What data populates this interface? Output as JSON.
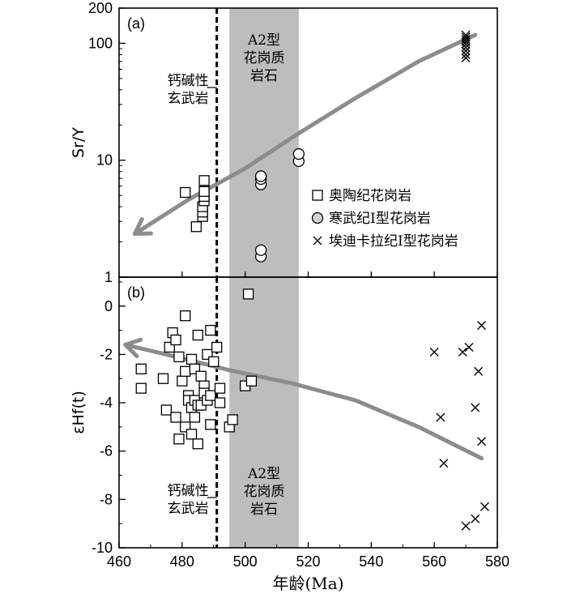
{
  "colors": {
    "shade": "#bdbdbd",
    "trend": "#8c8c8c",
    "cambrian_fill": "#d4d4d4",
    "axis": "#000000"
  },
  "chart_data": [
    {
      "type": "scatter",
      "panel_label": "(a)",
      "ylabel": "Sr/Y",
      "yscale": "log",
      "xlim": [
        460,
        580
      ],
      "ylim": [
        1,
        200
      ],
      "yticks": [
        1,
        10,
        100,
        200
      ],
      "ytick_labels": [
        "1",
        "10",
        "100",
        "200"
      ],
      "shaded_band": {
        "x0": 495,
        "x1": 517,
        "label_lines": [
          "A2型",
          "花岗质",
          "岩石"
        ]
      },
      "dashed_line": {
        "x": 491,
        "label_lines": [
          "钙碱性",
          "玄武岩"
        ]
      },
      "trend_arrow": {
        "points": [
          [
            573,
            118
          ],
          [
            555,
            70
          ],
          [
            535,
            34
          ],
          [
            517,
            17
          ],
          [
            500,
            8.5
          ],
          [
            482,
            4.6
          ],
          [
            465,
            2.35
          ]
        ],
        "direction": "toward-lower-left"
      },
      "legend": {
        "position": "right",
        "entries": [
          {
            "marker": "square",
            "label": "奥陶纪花岗岩"
          },
          {
            "marker": "circle",
            "label": "寒武纪I型花岗岩"
          },
          {
            "marker": "x",
            "label": "埃迪卡拉纪I型花岗岩"
          }
        ]
      },
      "series": [
        {
          "marker": "square",
          "points": [
            [
              481,
              5.3
            ],
            [
              484.5,
              2.7
            ],
            [
              486.5,
              3.3
            ],
            [
              486.5,
              3.6
            ],
            [
              486.5,
              4.0
            ],
            [
              487,
              4.5
            ],
            [
              487,
              4.9
            ],
            [
              487,
              5.4
            ],
            [
              487,
              6.7
            ]
          ]
        },
        {
          "marker": "circle",
          "points": [
            [
              505,
              1.5
            ],
            [
              505,
              1.7
            ],
            [
              505,
              6.2
            ],
            [
              505,
              6.9
            ],
            [
              505,
              7.3
            ],
            [
              517,
              9.8
            ],
            [
              517,
              11.3
            ]
          ]
        },
        {
          "marker": "x",
          "points": [
            [
              570,
              75
            ],
            [
              570,
              80
            ],
            [
              570,
              86
            ],
            [
              570,
              92
            ],
            [
              570,
              98
            ],
            [
              570,
              103
            ],
            [
              570,
              108
            ],
            [
              570,
              113
            ],
            [
              570,
              118
            ]
          ]
        }
      ]
    },
    {
      "type": "scatter",
      "panel_label": "(b)",
      "ylabel": "εHf(t)",
      "xlabel": "年龄(Ma)",
      "xlim": [
        460,
        580
      ],
      "ylim": [
        -10,
        1.2
      ],
      "xticks": [
        460,
        480,
        500,
        520,
        540,
        560,
        580
      ],
      "yticks": [
        -10,
        -8,
        -6,
        -4,
        -2,
        0
      ],
      "shaded_band": {
        "x0": 495,
        "x1": 517,
        "label_lines": [
          "A2型",
          "花岗质",
          "岩石"
        ]
      },
      "dashed_line": {
        "x": 491,
        "label_lines": [
          "钙碱性",
          "玄武岩"
        ]
      },
      "trend_arrow": {
        "points": [
          [
            575,
            -6.3
          ],
          [
            555,
            -5.0
          ],
          [
            535,
            -3.9
          ],
          [
            515,
            -3.2
          ],
          [
            495,
            -2.65
          ],
          [
            475,
            -2.0
          ],
          [
            462,
            -1.6
          ]
        ],
        "direction": "toward-upper-left"
      },
      "series": [
        {
          "marker": "square",
          "points": [
            [
              467,
              -2.6
            ],
            [
              467,
              -3.4
            ],
            [
              474,
              -3.0
            ],
            [
              475,
              -4.3
            ],
            [
              476,
              -1.7
            ],
            [
              477,
              -1.1
            ],
            [
              478,
              -1.4
            ],
            [
              478,
              -4.6
            ],
            [
              479,
              -2.1
            ],
            [
              479,
              -5.5
            ],
            [
              480,
              -3.1
            ],
            [
              481,
              -0.4
            ],
            [
              481,
              -2.7
            ],
            [
              481,
              -5.0
            ],
            [
              482,
              -3.7
            ],
            [
              482,
              -3.9
            ],
            [
              483,
              -2.2
            ],
            [
              483,
              -4.2
            ],
            [
              483,
              -5.3
            ],
            [
              484,
              -2.6
            ],
            [
              484,
              -3.9
            ],
            [
              484,
              -4.6
            ],
            [
              485,
              -1.2
            ],
            [
              485,
              -4.1
            ],
            [
              485,
              -5.7
            ],
            [
              486,
              -2.9
            ],
            [
              486,
              -4.1
            ],
            [
              487,
              -3.3
            ],
            [
              487,
              -3.6
            ],
            [
              488,
              -2.0
            ],
            [
              488,
              -3.9
            ],
            [
              489,
              -1.0
            ],
            [
              489,
              -3.7
            ],
            [
              489,
              -4.9
            ],
            [
              490,
              -2.3
            ],
            [
              491,
              -1.7
            ],
            [
              492,
              -3.4
            ],
            [
              492,
              -4.0
            ],
            [
              495,
              -5.0
            ],
            [
              496,
              -4.7
            ],
            [
              500,
              -3.3
            ],
            [
              501,
              0.5
            ],
            [
              502,
              -3.1
            ]
          ]
        },
        {
          "marker": "x",
          "points": [
            [
              560,
              -1.9
            ],
            [
              562,
              -4.6
            ],
            [
              563,
              -6.5
            ],
            [
              569,
              -1.9
            ],
            [
              571,
              -1.7
            ],
            [
              570,
              -9.1
            ],
            [
              573,
              -4.2
            ],
            [
              573,
              -8.8
            ],
            [
              574,
              -2.7
            ],
            [
              575,
              -0.8
            ],
            [
              575,
              -5.6
            ],
            [
              576,
              -8.3
            ]
          ]
        }
      ]
    }
  ]
}
